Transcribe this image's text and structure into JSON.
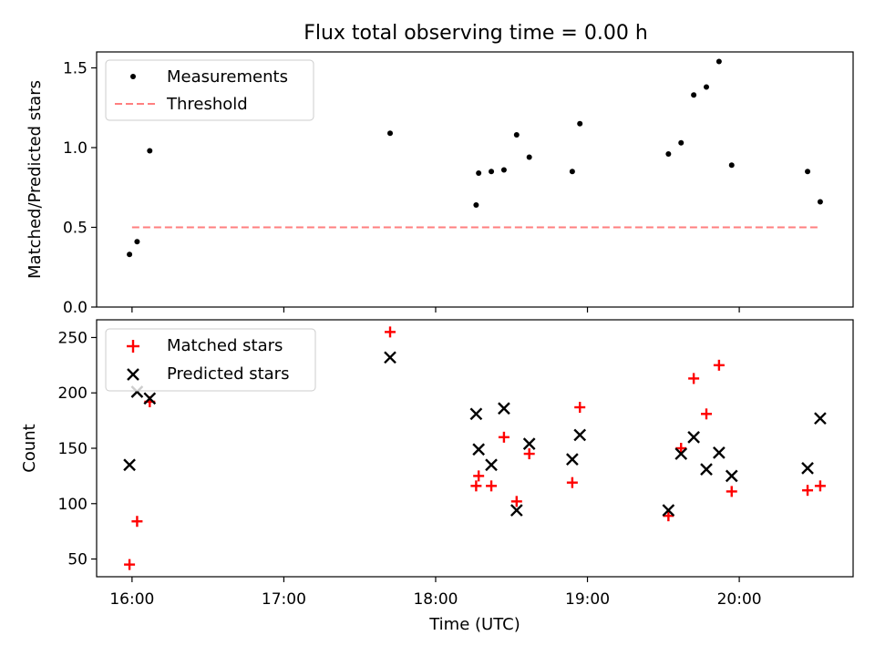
{
  "chart_data": {
    "type": "scatter",
    "title": "Flux total observing time = 0.00 h",
    "x_axis": {
      "label": "Time (UTC)",
      "ticks": [
        "16:00",
        "17:00",
        "18:00",
        "19:00",
        "20:00"
      ],
      "range": [
        "15:46",
        "20:45"
      ]
    },
    "panels": [
      {
        "ylabel": "Matched/Predicted stars",
        "ylim": [
          0,
          1.6
        ],
        "yticks": [
          "0.0",
          "0.5",
          "1.0",
          "1.5"
        ],
        "legend": "top-left",
        "grid": false,
        "series": [
          {
            "name": "Measurements",
            "marker": "dot",
            "color": "#000000",
            "points": [
              {
                "x": "15:59",
                "y": 0.33
              },
              {
                "x": "16:02",
                "y": 0.41
              },
              {
                "x": "16:07",
                "y": 0.98
              },
              {
                "x": "17:42",
                "y": 1.09
              },
              {
                "x": "18:16",
                "y": 0.64
              },
              {
                "x": "18:17",
                "y": 0.84
              },
              {
                "x": "18:22",
                "y": 0.85
              },
              {
                "x": "18:27",
                "y": 0.86
              },
              {
                "x": "18:32",
                "y": 1.08
              },
              {
                "x": "18:37",
                "y": 0.94
              },
              {
                "x": "18:54",
                "y": 0.85
              },
              {
                "x": "18:57",
                "y": 1.15
              },
              {
                "x": "19:32",
                "y": 0.96
              },
              {
                "x": "19:37",
                "y": 1.03
              },
              {
                "x": "19:42",
                "y": 1.33
              },
              {
                "x": "19:47",
                "y": 1.38
              },
              {
                "x": "19:52",
                "y": 1.54
              },
              {
                "x": "19:57",
                "y": 0.89
              },
              {
                "x": "20:27",
                "y": 0.85
              },
              {
                "x": "20:32",
                "y": 0.66
              }
            ]
          },
          {
            "name": "Threshold",
            "marker": "dashed-line",
            "color": "#ff7f7f",
            "points": [
              {
                "x": "16:00",
                "y": 0.5
              },
              {
                "x": "20:32",
                "y": 0.5
              }
            ]
          }
        ]
      },
      {
        "ylabel": "Count",
        "ylim": [
          34,
          266
        ],
        "yticks": [
          "50",
          "100",
          "150",
          "200",
          "250"
        ],
        "legend": "top-left",
        "grid": false,
        "series": [
          {
            "name": "Matched stars",
            "marker": "plus",
            "color": "#ff0000",
            "points": [
              {
                "x": "15:59",
                "y": 45
              },
              {
                "x": "16:02",
                "y": 84
              },
              {
                "x": "16:07",
                "y": 192
              },
              {
                "x": "17:42",
                "y": 255
              },
              {
                "x": "18:16",
                "y": 116
              },
              {
                "x": "18:17",
                "y": 125
              },
              {
                "x": "18:22",
                "y": 116
              },
              {
                "x": "18:27",
                "y": 160
              },
              {
                "x": "18:32",
                "y": 102
              },
              {
                "x": "18:37",
                "y": 145
              },
              {
                "x": "18:54",
                "y": 119
              },
              {
                "x": "18:57",
                "y": 187
              },
              {
                "x": "19:32",
                "y": 89
              },
              {
                "x": "19:37",
                "y": 150
              },
              {
                "x": "19:42",
                "y": 213
              },
              {
                "x": "19:47",
                "y": 181
              },
              {
                "x": "19:52",
                "y": 225
              },
              {
                "x": "19:57",
                "y": 111
              },
              {
                "x": "20:27",
                "y": 112
              },
              {
                "x": "20:32",
                "y": 116
              }
            ]
          },
          {
            "name": "Predicted stars",
            "marker": "x",
            "color": "#000000",
            "points": [
              {
                "x": "15:59",
                "y": 135
              },
              {
                "x": "16:02",
                "y": 201
              },
              {
                "x": "16:07",
                "y": 195
              },
              {
                "x": "17:42",
                "y": 232
              },
              {
                "x": "18:16",
                "y": 181
              },
              {
                "x": "18:17",
                "y": 149
              },
              {
                "x": "18:22",
                "y": 135
              },
              {
                "x": "18:27",
                "y": 186
              },
              {
                "x": "18:32",
                "y": 94
              },
              {
                "x": "18:37",
                "y": 154
              },
              {
                "x": "18:54",
                "y": 140
              },
              {
                "x": "18:57",
                "y": 162
              },
              {
                "x": "19:32",
                "y": 94
              },
              {
                "x": "19:37",
                "y": 145
              },
              {
                "x": "19:42",
                "y": 160
              },
              {
                "x": "19:47",
                "y": 131
              },
              {
                "x": "19:52",
                "y": 146
              },
              {
                "x": "19:57",
                "y": 125
              },
              {
                "x": "20:27",
                "y": 132
              },
              {
                "x": "20:32",
                "y": 177
              }
            ]
          }
        ]
      }
    ]
  }
}
